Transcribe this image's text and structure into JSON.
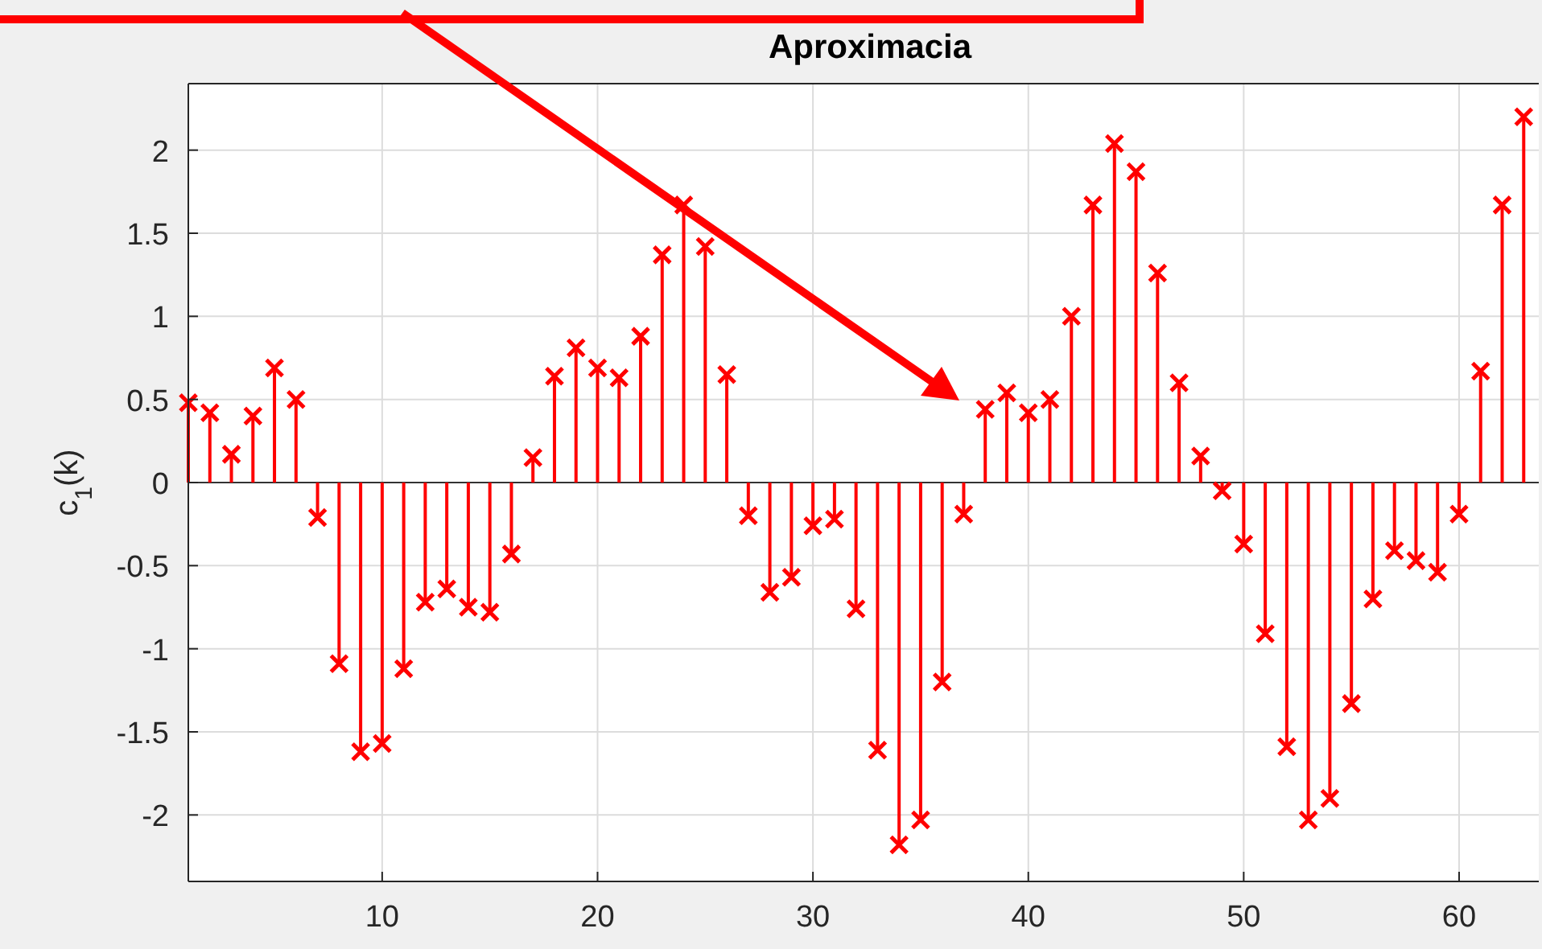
{
  "chart_data": {
    "type": "lollipop",
    "title": "Aproximacia",
    "ylabel": "c$_{1}$(k)",
    "x": [
      1,
      2,
      3,
      4,
      5,
      6,
      7,
      8,
      9,
      10,
      11,
      12,
      13,
      14,
      15,
      16,
      17,
      18,
      19,
      20,
      21,
      22,
      23,
      24,
      25,
      26,
      27,
      28,
      29,
      30,
      31,
      32,
      33,
      34,
      35,
      36,
      37,
      38,
      39,
      40,
      41,
      42,
      43,
      44,
      45,
      46,
      47,
      48,
      49,
      50,
      51,
      52,
      53,
      54,
      55,
      56,
      57,
      58,
      59,
      60,
      61,
      62,
      63
    ],
    "values": [
      0.48,
      0.42,
      0.17,
      0.4,
      0.69,
      0.5,
      -0.21,
      -1.09,
      -1.62,
      -1.57,
      -1.12,
      -0.72,
      -0.64,
      -0.75,
      -0.78,
      -0.43,
      0.15,
      0.64,
      0.81,
      0.69,
      0.63,
      0.88,
      1.37,
      1.67,
      1.42,
      0.65,
      -0.2,
      -0.66,
      -0.57,
      -0.26,
      -0.22,
      -0.76,
      -1.61,
      -2.18,
      -2.03,
      -1.2,
      -0.19,
      0.44,
      0.54,
      0.42,
      0.5,
      1.0,
      1.67,
      2.04,
      1.87,
      1.26,
      0.6,
      0.16,
      -0.05,
      -0.37,
      -0.91,
      -1.59,
      -2.03,
      -1.9,
      -1.33,
      -0.7,
      -0.41,
      -0.47,
      -0.54,
      -0.19,
      0.67,
      1.67,
      2.2
    ],
    "color": "#ff0000",
    "marker": "cross",
    "grid": true,
    "xlim": [
      1,
      63.7
    ],
    "xticks": [
      10,
      20,
      30,
      40,
      50,
      60
    ],
    "ylim": [
      -2.4,
      2.4
    ],
    "yticks": [
      -2,
      -1.5,
      -1,
      -0.5,
      0,
      0.5,
      1,
      1.5,
      2
    ]
  }
}
